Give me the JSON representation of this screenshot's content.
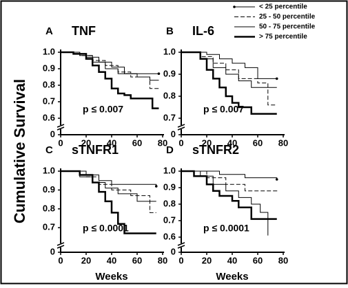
{
  "y_label": "Cumulative Survival",
  "legend": [
    {
      "name": "< 25 percentile",
      "color": "#000",
      "width": 1,
      "dash": "none",
      "marker": true
    },
    {
      "name": "25 - 50 percentile",
      "color": "#000",
      "width": 1,
      "dash": "6,3",
      "marker": false
    },
    {
      "name": "50 - 75 percentile",
      "color": "#000",
      "width": 1,
      "dash": "none",
      "marker": false
    },
    {
      "name": "> 75 percentile",
      "color": "#000",
      "width": 2.5,
      "dash": "none",
      "marker": false
    }
  ],
  "chart_data": [
    {
      "type": "step",
      "letter": "A",
      "title": "TNF",
      "annotation": "p ≤ 0.007",
      "xlim": [
        0,
        80
      ],
      "xticks": [
        0,
        20,
        40,
        60,
        80
      ],
      "ylim": [
        0.6,
        1.0
      ],
      "yticks": [
        {
          "value": 1.0,
          "label": "1.0"
        },
        0.9,
        0.8,
        0.7,
        0.6,
        0
      ],
      "series": [
        {
          "x": [
            0,
            10,
            20,
            30,
            40,
            50,
            77
          ],
          "values": [
            1,
            0.99,
            0.97,
            0.94,
            0.91,
            0.87,
            0.87
          ]
        },
        {
          "x": [
            0,
            15,
            25,
            35,
            45,
            55,
            70,
            77
          ],
          "values": [
            1,
            0.98,
            0.95,
            0.92,
            0.88,
            0.85,
            0.78,
            0.78
          ]
        },
        {
          "x": [
            0,
            15,
            25,
            35,
            45,
            60,
            70,
            77
          ],
          "values": [
            1,
            0.98,
            0.94,
            0.9,
            0.87,
            0.85,
            0.83,
            0.83
          ]
        },
        {
          "x": [
            0,
            10,
            20,
            25,
            30,
            35,
            40,
            45,
            50,
            55,
            72,
            77
          ],
          "values": [
            1,
            0.99,
            0.96,
            0.92,
            0.88,
            0.84,
            0.78,
            0.75,
            0.74,
            0.72,
            0.66,
            0.66
          ]
        }
      ]
    },
    {
      "type": "step",
      "letter": "B",
      "title": "IL-6",
      "annotation": "p ≤ 0.007",
      "xlim": [
        0,
        80
      ],
      "xticks": [
        0,
        20,
        40,
        60,
        80
      ],
      "ylim": [
        0.7,
        1.0
      ],
      "yticks": [
        {
          "value": 1.0,
          "label": "1.0"
        },
        0.9,
        0.8,
        0.7,
        0
      ],
      "series": [
        {
          "x": [
            0,
            20,
            30,
            40,
            50,
            60,
            75
          ],
          "values": [
            1,
            0.99,
            0.97,
            0.95,
            0.93,
            0.88,
            0.88
          ]
        },
        {
          "x": [
            0,
            15,
            25,
            35,
            45,
            60,
            68,
            75
          ],
          "values": [
            1,
            0.98,
            0.95,
            0.92,
            0.88,
            0.86,
            0.76,
            0.76
          ]
        },
        {
          "x": [
            0,
            15,
            25,
            35,
            45,
            55,
            75
          ],
          "values": [
            1,
            0.97,
            0.93,
            0.9,
            0.87,
            0.84,
            0.84
          ]
        },
        {
          "x": [
            0,
            15,
            20,
            25,
            30,
            35,
            40,
            45,
            55,
            75
          ],
          "values": [
            1,
            0.97,
            0.92,
            0.88,
            0.84,
            0.8,
            0.77,
            0.75,
            0.72,
            0.72
          ]
        }
      ]
    },
    {
      "type": "step",
      "letter": "C",
      "title": "sTNFR1",
      "annotation": "p ≤ 0.0001",
      "x_label": "Weeks",
      "xlim": [
        0,
        80
      ],
      "xticks": [
        0,
        20,
        40,
        60,
        80
      ],
      "ylim": [
        0.65,
        1.0
      ],
      "yticks": [
        {
          "value": 1.0,
          "label": "1.0"
        },
        0.9,
        0.8,
        0.7,
        0
      ],
      "series": [
        {
          "x": [
            0,
            20,
            30,
            40,
            75
          ],
          "values": [
            1,
            0.98,
            0.95,
            0.93,
            0.92
          ]
        },
        {
          "x": [
            0,
            20,
            30,
            40,
            55,
            70,
            75
          ],
          "values": [
            1,
            0.97,
            0.93,
            0.9,
            0.87,
            0.78,
            0.78
          ]
        },
        {
          "x": [
            0,
            15,
            25,
            35,
            45,
            60,
            75
          ],
          "values": [
            1,
            0.97,
            0.94,
            0.91,
            0.88,
            0.84,
            0.84
          ]
        },
        {
          "x": [
            0,
            15,
            25,
            30,
            35,
            40,
            45,
            50,
            75
          ],
          "values": [
            1,
            0.98,
            0.94,
            0.89,
            0.84,
            0.78,
            0.72,
            0.67,
            0.67
          ]
        }
      ]
    },
    {
      "type": "step",
      "letter": "D",
      "title": "sTNFR2",
      "annotation": "p ≤ 0.0001",
      "x_label": "Weeks",
      "xlim": [
        0,
        80
      ],
      "xticks": [
        0,
        20,
        40,
        60,
        80
      ],
      "ylim": [
        0.6,
        1.0
      ],
      "yticks": [
        {
          "value": 1.0,
          "label": "1.0"
        },
        0.9,
        0.8,
        0.7,
        0.6,
        0
      ],
      "series": [
        {
          "x": [
            0,
            30,
            50,
            75
          ],
          "values": [
            1,
            0.98,
            0.96,
            0.95
          ]
        },
        {
          "x": [
            0,
            20,
            35,
            50,
            75
          ],
          "values": [
            1,
            0.96,
            0.92,
            0.88,
            0.87
          ]
        },
        {
          "x": [
            0,
            15,
            25,
            35,
            45,
            55,
            62,
            68
          ],
          "values": [
            1,
            0.97,
            0.92,
            0.88,
            0.84,
            0.8,
            0.75,
            0.61
          ]
        },
        {
          "x": [
            0,
            10,
            20,
            25,
            30,
            40,
            45,
            55,
            75
          ],
          "values": [
            1,
            0.97,
            0.92,
            0.88,
            0.85,
            0.82,
            0.78,
            0.71,
            0.71
          ]
        }
      ]
    }
  ]
}
